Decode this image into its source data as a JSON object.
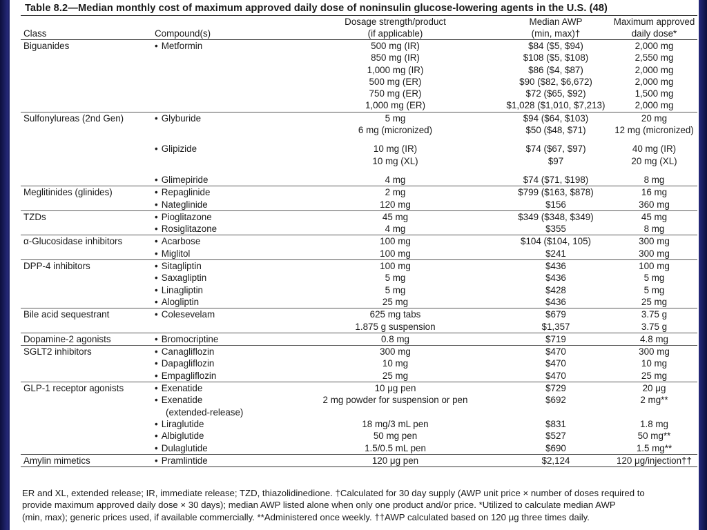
{
  "title": "Table 8.2—Median monthly cost of maximum approved daily dose of noninsulin glucose-lowering agents in the U.S. (48)",
  "header": {
    "c1": [
      "",
      "Class"
    ],
    "c2": [
      "",
      "Compound(s)"
    ],
    "c3": [
      "Dosage strength/product",
      "(if applicable)"
    ],
    "c4": [
      "Median AWP",
      "(min, max)†"
    ],
    "c5": [
      "Maximum approved",
      "daily dose*"
    ]
  },
  "rows": [
    {
      "g": 1,
      "cls": "Biguanides",
      "cmp": "Metformin",
      "b": 1,
      "dos": "500 mg (IR)",
      "awp": "$84 ($5, $94)",
      "max": "2,000 mg"
    },
    {
      "g": 0,
      "cls": "",
      "cmp": "",
      "b": 0,
      "dos": "850 mg (IR)",
      "awp": "$108 ($5, $108)",
      "max": "2,550 mg"
    },
    {
      "g": 0,
      "cls": "",
      "cmp": "",
      "b": 0,
      "dos": "1,000 mg (IR)",
      "awp": "$86 ($4, $87)",
      "max": "2,000 mg"
    },
    {
      "g": 0,
      "cls": "",
      "cmp": "",
      "b": 0,
      "dos": "500 mg (ER)",
      "awp": "$90 ($82, $6,672)",
      "max": "2,000 mg"
    },
    {
      "g": 0,
      "cls": "",
      "cmp": "",
      "b": 0,
      "dos": "750 mg (ER)",
      "awp": "$72 ($65, $92)",
      "max": "1,500 mg"
    },
    {
      "g": 0,
      "cls": "",
      "cmp": "",
      "b": 0,
      "dos": "1,000 mg (ER)",
      "awp": "$1,028 ($1,010, $7,213)",
      "max": "2,000 mg"
    },
    {
      "g": 1,
      "cls": "Sulfonylureas (2nd Gen)",
      "cmp": "Glyburide",
      "b": 1,
      "dos": "5 mg",
      "awp": "$94 ($64, $103)",
      "max": "20 mg"
    },
    {
      "g": 0,
      "cls": "",
      "cmp": "",
      "b": 0,
      "dos": "6 mg (micronized)",
      "awp": "$50 ($48, $71)",
      "max": "12 mg (micronized)"
    },
    {
      "sp": 1
    },
    {
      "g": 0,
      "cls": "",
      "cmp": "Glipizide",
      "b": 1,
      "dos": "10 mg (IR)",
      "awp": "$74 ($67, $97)",
      "max": "40 mg (IR)"
    },
    {
      "g": 0,
      "cls": "",
      "cmp": "",
      "b": 0,
      "dos": "10 mg (XL)",
      "awp": "$97",
      "max": "20 mg (XL)"
    },
    {
      "sp": 1
    },
    {
      "g": 0,
      "cls": "",
      "cmp": "Glimepiride",
      "b": 1,
      "dos": "4 mg",
      "awp": "$74 ($71, $198)",
      "max": "8 mg"
    },
    {
      "g": 1,
      "cls": "Meglitinides (glinides)",
      "cmp": "Repaglinide",
      "b": 1,
      "dos": "2 mg",
      "awp": "$799 ($163, $878)",
      "max": "16 mg"
    },
    {
      "g": 0,
      "cls": "",
      "cmp": "Nateglinide",
      "b": 1,
      "dos": "120 mg",
      "awp": "$156",
      "max": "360 mg"
    },
    {
      "g": 1,
      "cls": "TZDs",
      "cmp": "Pioglitazone",
      "b": 1,
      "dos": "45 mg",
      "awp": "$349 ($348, $349)",
      "max": "45 mg"
    },
    {
      "g": 0,
      "cls": "",
      "cmp": "Rosiglitazone",
      "b": 1,
      "dos": "4 mg",
      "awp": "$355",
      "max": "8 mg"
    },
    {
      "g": 1,
      "cls": "α-Glucosidase inhibitors",
      "cmp": "Acarbose",
      "b": 1,
      "dos": "100 mg",
      "awp": "$104 ($104, 105)",
      "max": "300 mg"
    },
    {
      "g": 0,
      "cls": "",
      "cmp": "Miglitol",
      "b": 1,
      "dos": "100 mg",
      "awp": "$241",
      "max": "300 mg"
    },
    {
      "g": 1,
      "cls": "DPP-4 inhibitors",
      "cmp": "Sitagliptin",
      "b": 1,
      "dos": "100 mg",
      "awp": "$436",
      "max": "100 mg"
    },
    {
      "g": 0,
      "cls": "",
      "cmp": "Saxagliptin",
      "b": 1,
      "dos": "5 mg",
      "awp": "$436",
      "max": "5 mg"
    },
    {
      "g": 0,
      "cls": "",
      "cmp": "Linagliptin",
      "b": 1,
      "dos": "5 mg",
      "awp": "$428",
      "max": "5 mg"
    },
    {
      "g": 0,
      "cls": "",
      "cmp": "Alogliptin",
      "b": 1,
      "dos": "25 mg",
      "awp": "$436",
      "max": "25 mg"
    },
    {
      "g": 1,
      "cls": "Bile acid sequestrant",
      "cmp": "Colesevelam",
      "b": 1,
      "dos": "625 mg tabs",
      "awp": "$679",
      "max": "3.75 g"
    },
    {
      "g": 0,
      "cls": "",
      "cmp": "",
      "b": 0,
      "dos": "1.875 g suspension",
      "awp": "$1,357",
      "max": "3.75 g"
    },
    {
      "g": 1,
      "cls": "Dopamine-2 agonists",
      "cmp": "Bromocriptine",
      "b": 1,
      "dos": "0.8 mg",
      "awp": "$719",
      "max": "4.8 mg"
    },
    {
      "g": 1,
      "cls": "SGLT2 inhibitors",
      "cmp": "Canagliflozin",
      "b": 1,
      "dos": "300 mg",
      "awp": "$470",
      "max": "300 mg"
    },
    {
      "g": 0,
      "cls": "",
      "cmp": "Dapagliflozin",
      "b": 1,
      "dos": "10 mg",
      "awp": "$470",
      "max": "10 mg"
    },
    {
      "g": 0,
      "cls": "",
      "cmp": "Empagliflozin",
      "b": 1,
      "dos": "25 mg",
      "awp": "$470",
      "max": "25 mg"
    },
    {
      "g": 1,
      "cls": "GLP-1 receptor agonists",
      "cmp": "Exenatide",
      "b": 1,
      "dos": "10 μg pen",
      "awp": "$729",
      "max": "20 μg"
    },
    {
      "g": 0,
      "cls": "",
      "cmp": "Exenatide",
      "b": 1,
      "dos": "2 mg powder for suspension or pen",
      "awp": "$692",
      "max": "2 mg**"
    },
    {
      "g": 0,
      "cls": "",
      "cmp": "(extended-release)",
      "b": 0,
      "dos": "",
      "awp": "",
      "max": ""
    },
    {
      "g": 0,
      "cls": "",
      "cmp": "Liraglutide",
      "b": 1,
      "dos": "18 mg/3 mL pen",
      "awp": "$831",
      "max": "1.8 mg"
    },
    {
      "g": 0,
      "cls": "",
      "cmp": "Albiglutide",
      "b": 1,
      "dos": "50 mg pen",
      "awp": "$527",
      "max": "50 mg**"
    },
    {
      "g": 0,
      "cls": "",
      "cmp": "Dulaglutide",
      "b": 1,
      "dos": "1.5/0.5 mL pen",
      "awp": "$690",
      "max": "1.5 mg**"
    },
    {
      "g": 1,
      "cls": "Amylin mimetics",
      "cmp": "Pramlintide",
      "b": 1,
      "dos": "120 μg pen",
      "awp": "$2,124",
      "max": "120 μg/injection††"
    }
  ],
  "footnote": [
    "ER and XL, extended release; IR, immediate release; TZD, thiazolidinedione. †Calculated for 30 day supply (AWP unit price × number of doses required to",
    "provide maximum approved daily dose × 30 days); median AWP listed alone when only one product and/or price. *Utilized to calculate median AWP",
    "(min, max); generic prices used, if available commercially. **Administered once weekly. ††AWP calculated based on 120 μg three times daily."
  ]
}
